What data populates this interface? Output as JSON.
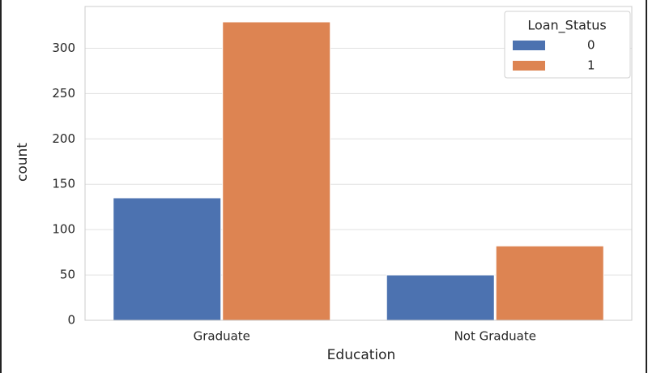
{
  "chart_data": {
    "type": "bar",
    "x_label": "Education",
    "y_label": "count",
    "categories": [
      "Graduate",
      "Not Graduate"
    ],
    "series": [
      {
        "name": "0",
        "color": "#4c72b0",
        "values": [
          135,
          50
        ]
      },
      {
        "name": "1",
        "color": "#dd8452",
        "values": [
          329,
          82
        ]
      }
    ],
    "legend_title": "Loan_Status",
    "legend_position": "upper right",
    "ylim": [
      0,
      346
    ],
    "yticks": [
      0,
      50,
      100,
      150,
      200,
      250,
      300
    ],
    "grid": true
  }
}
